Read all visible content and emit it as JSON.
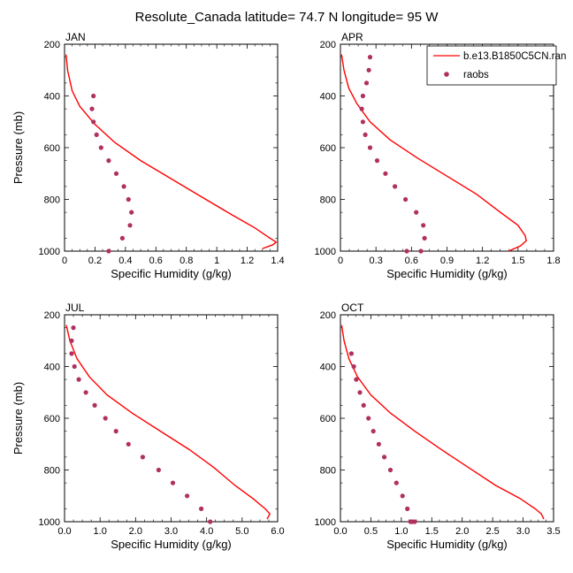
{
  "figure": {
    "title": "Resolute_Canada  latitude= 74.7 N longitude= 95 W"
  },
  "legend": {
    "model_label": "b.e13.B1850C5CN.ran",
    "obs_label": "raobs"
  },
  "colors": {
    "model_line": "#ff0000",
    "obs_marker": "#b03060"
  },
  "chart_data": [
    {
      "type": "line",
      "panel_label": "JAN",
      "xlabel": "Specific Humidity (g/kg)",
      "ylabel": "Pressure (mb)",
      "xlim": [
        0,
        1.4
      ],
      "ylim": [
        1000,
        200
      ],
      "xticks": [
        0,
        0.2,
        0.4,
        0.6,
        0.8,
        1,
        1.2,
        1.4
      ],
      "xtick_labels": [
        "0",
        "0.2",
        "0.4",
        "0.6",
        "0.8",
        "1",
        "1.2",
        "1.4"
      ],
      "yticks": [
        200,
        400,
        600,
        800,
        1000
      ],
      "series": [
        {
          "name": "b.e13.B1850C5CN.ran",
          "kind": "line",
          "x": [
            0.01,
            0.02,
            0.05,
            0.1,
            0.2,
            0.33,
            0.5,
            0.7,
            0.9,
            1.1,
            1.25,
            1.35,
            1.39,
            1.37,
            1.3
          ],
          "y": [
            240,
            300,
            380,
            440,
            510,
            580,
            650,
            720,
            790,
            860,
            910,
            950,
            965,
            975,
            990
          ]
        },
        {
          "name": "raobs",
          "kind": "scatter",
          "x": [
            0.19,
            0.18,
            0.19,
            0.21,
            0.24,
            0.29,
            0.34,
            0.39,
            0.42,
            0.44,
            0.43,
            0.38,
            0.29
          ],
          "y": [
            400,
            450,
            500,
            550,
            600,
            650,
            700,
            750,
            800,
            850,
            900,
            950,
            1000
          ]
        }
      ]
    },
    {
      "type": "line",
      "panel_label": "APR",
      "xlabel": "Specific Humidity (g/kg)",
      "ylabel": "",
      "xlim": [
        0,
        1.8
      ],
      "ylim": [
        1000,
        200
      ],
      "xticks": [
        0,
        0.3,
        0.6,
        0.9,
        1.2,
        1.5,
        1.8
      ],
      "xtick_labels": [
        "0",
        "0.3",
        "0.6",
        "0.9",
        "1.2",
        "1.5",
        "1.8"
      ],
      "yticks": [
        200,
        400,
        600,
        800,
        1000
      ],
      "series": [
        {
          "name": "b.e13.B1850C5CN.ran",
          "kind": "line",
          "x": [
            0.01,
            0.03,
            0.07,
            0.14,
            0.25,
            0.42,
            0.65,
            0.9,
            1.15,
            1.35,
            1.5,
            1.56,
            1.57,
            1.52,
            1.42
          ],
          "y": [
            240,
            300,
            370,
            430,
            500,
            570,
            640,
            710,
            780,
            850,
            900,
            940,
            960,
            980,
            1000
          ]
        },
        {
          "name": "raobs",
          "kind": "scatter",
          "x": [
            0.25,
            0.24,
            0.22,
            0.19,
            0.18,
            0.19,
            0.21,
            0.25,
            0.31,
            0.38,
            0.46,
            0.55,
            0.64,
            0.7,
            0.71,
            0.68,
            0.56
          ],
          "y": [
            250,
            300,
            350,
            400,
            450,
            500,
            550,
            600,
            650,
            700,
            750,
            800,
            850,
            900,
            950,
            1000,
            1000
          ]
        }
      ]
    },
    {
      "type": "line",
      "panel_label": "JUL",
      "xlabel": "Specific Humidity (g/kg)",
      "ylabel": "Pressure (mb)",
      "xlim": [
        0,
        6.0
      ],
      "ylim": [
        1000,
        200
      ],
      "xticks": [
        0,
        1,
        2,
        3,
        4,
        5,
        6
      ],
      "xtick_labels": [
        "0.0",
        "1.0",
        "2.0",
        "3.0",
        "4.0",
        "5.0",
        "6.0"
      ],
      "yticks": [
        200,
        400,
        600,
        800,
        1000
      ],
      "series": [
        {
          "name": "b.e13.B1850C5CN.ran",
          "kind": "line",
          "x": [
            0.05,
            0.15,
            0.35,
            0.7,
            1.2,
            1.9,
            2.7,
            3.5,
            4.2,
            4.8,
            5.3,
            5.65,
            5.78,
            5.7
          ],
          "y": [
            240,
            300,
            370,
            440,
            510,
            580,
            650,
            720,
            790,
            860,
            910,
            950,
            970,
            990
          ]
        },
        {
          "name": "raobs",
          "kind": "scatter",
          "x": [
            0.25,
            0.2,
            0.2,
            0.28,
            0.4,
            0.6,
            0.85,
            1.15,
            1.45,
            1.8,
            2.2,
            2.65,
            3.05,
            3.45,
            3.85,
            4.1
          ],
          "y": [
            250,
            300,
            350,
            400,
            450,
            500,
            550,
            600,
            650,
            700,
            750,
            800,
            850,
            900,
            950,
            1000
          ]
        }
      ]
    },
    {
      "type": "line",
      "panel_label": "OCT",
      "xlabel": "Specific Humidity (g/kg)",
      "ylabel": "",
      "xlim": [
        0,
        3.5
      ],
      "ylim": [
        1000,
        200
      ],
      "xticks": [
        0,
        0.5,
        1,
        1.5,
        2,
        2.5,
        3,
        3.5
      ],
      "xtick_labels": [
        "0.0",
        "0.5",
        "1.0",
        "1.5",
        "2.0",
        "2.5",
        "3.0",
        "3.5"
      ],
      "yticks": [
        200,
        400,
        600,
        800,
        1000
      ],
      "series": [
        {
          "name": "b.e13.B1850C5CN.ran",
          "kind": "line",
          "x": [
            0.02,
            0.06,
            0.14,
            0.28,
            0.5,
            0.82,
            1.22,
            1.65,
            2.1,
            2.55,
            2.95,
            3.2,
            3.3,
            3.34
          ],
          "y": [
            240,
            300,
            370,
            440,
            510,
            580,
            650,
            720,
            790,
            860,
            910,
            950,
            970,
            990
          ]
        },
        {
          "name": "raobs",
          "kind": "scatter",
          "x": [
            0.18,
            0.22,
            0.26,
            0.32,
            0.38,
            0.46,
            0.54,
            0.63,
            0.72,
            0.82,
            0.92,
            1.02,
            1.1,
            1.18,
            1.22,
            1.15
          ],
          "y": [
            350,
            400,
            450,
            500,
            550,
            600,
            650,
            700,
            750,
            800,
            850,
            900,
            950,
            1000,
            1000,
            1000
          ]
        }
      ]
    }
  ]
}
